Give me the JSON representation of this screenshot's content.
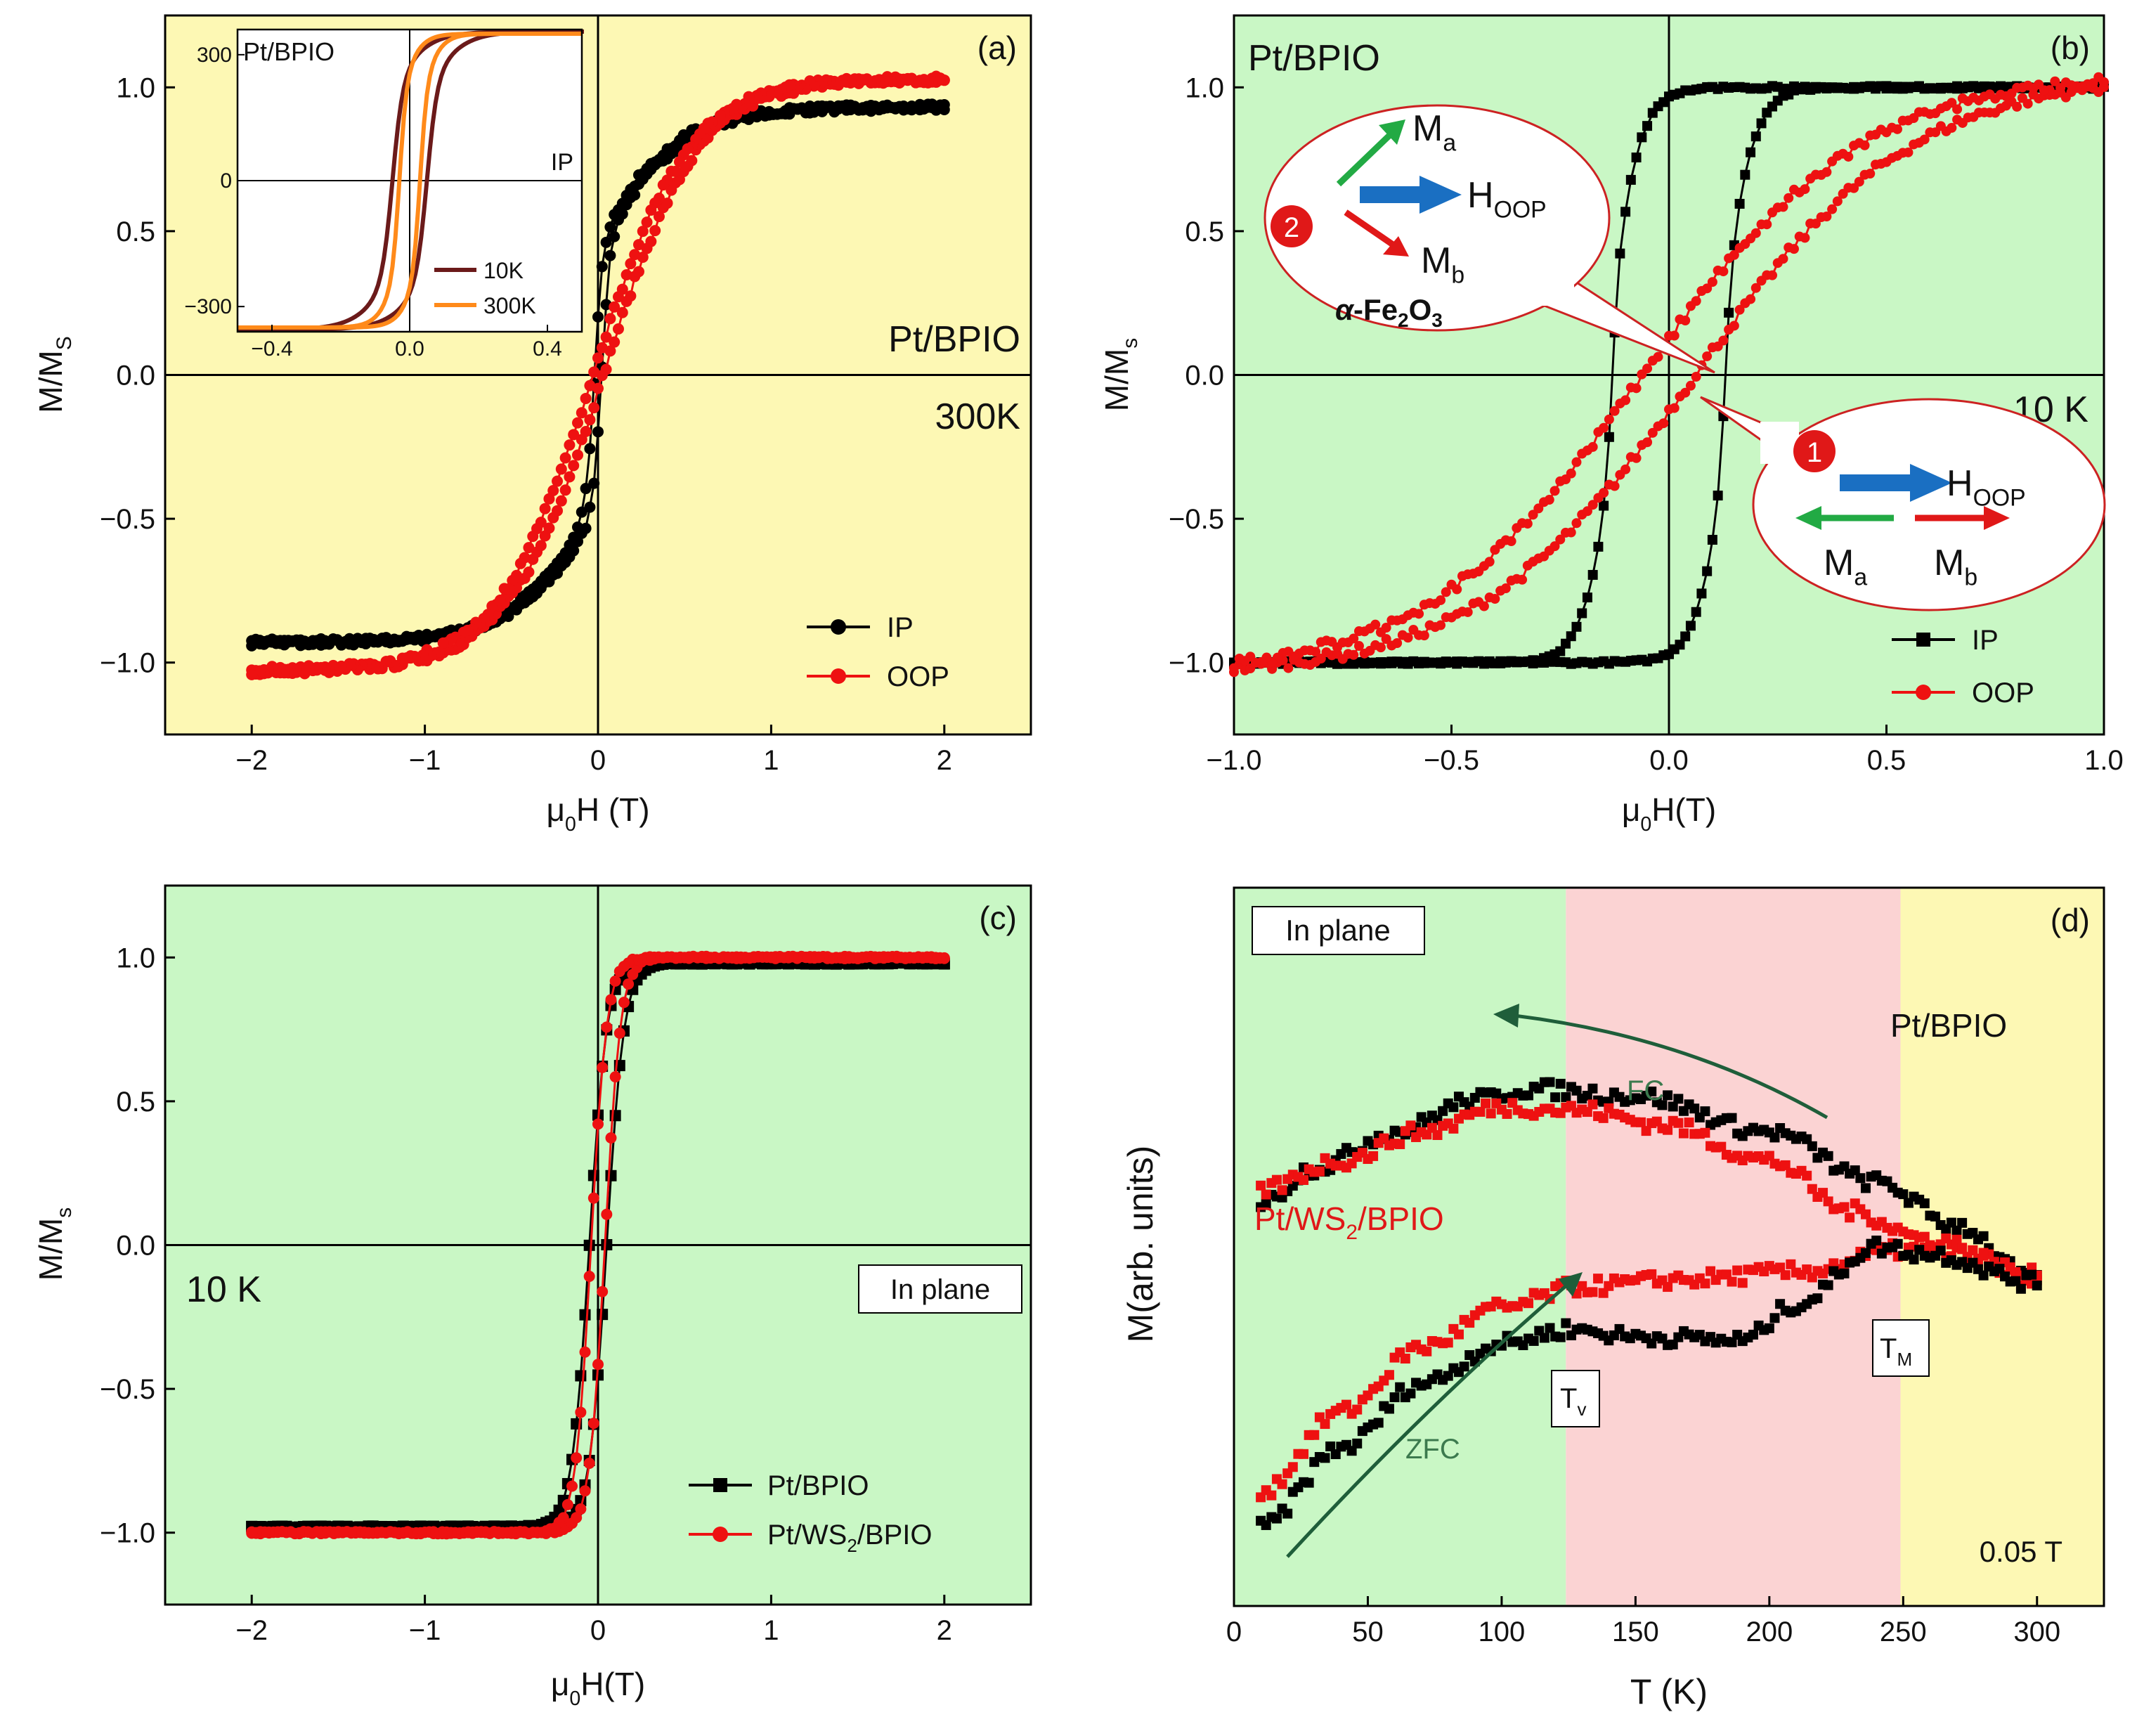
{
  "chart_data": [
    {
      "id": "a",
      "type": "line",
      "panel_label": "(a)",
      "xlabel": "μ0H (T)",
      "ylabel": "M/MS",
      "xlim": [
        -2.5,
        2.5
      ],
      "ylim": [
        -1.25,
        1.25
      ],
      "xticks": [
        -2,
        -1,
        0,
        1,
        2
      ],
      "yticks": [
        -1.0,
        -0.5,
        0.0,
        0.5,
        1.0
      ],
      "background": "#fdf8b4",
      "annotations": [
        "Pt/BPIO",
        "300K"
      ],
      "legend": [
        "IP",
        "OOP"
      ],
      "series": [
        {
          "name": "IP",
          "color": "#000000",
          "marker": "circle",
          "xmin": -2,
          "xmax": 2,
          "Hc": 0.02,
          "sat": 0.93,
          "w_hi": 0.5,
          "w_lo": 0.05,
          "mix": 0.5,
          "noise": 0.012
        },
        {
          "name": "OOP",
          "color": "#ee1111",
          "marker": "circle",
          "xmin": -2,
          "xmax": 2,
          "Hc": 0.03,
          "sat": 1.03,
          "w_hi": 0.55,
          "w_lo": 0.5,
          "mix": 1.0,
          "noise": 0.014
        }
      ],
      "inset": {
        "title": "Pt/BPIO",
        "label": "IP",
        "xlim": [
          -0.5,
          0.5
        ],
        "ylim": [
          -360,
          360
        ],
        "xticks": [
          -0.4,
          0.0,
          0.4
        ],
        "yticks": [
          -300,
          0,
          300
        ],
        "legend": [
          "10K",
          "300K"
        ],
        "series": [
          {
            "name": "10K",
            "color": "#6b1a1a",
            "Hc": 0.05,
            "sat": 355,
            "w_hi": 0.11,
            "w_lo": 0.03,
            "mix": 0.35
          },
          {
            "name": "300K",
            "color": "#ff8a1a",
            "Hc": 0.03,
            "sat": 350,
            "w_hi": 0.06,
            "w_lo": 0.02,
            "mix": 0.4
          }
        ]
      }
    },
    {
      "id": "b",
      "type": "line",
      "panel_label": "(b)",
      "xlabel": "μ0H(T)",
      "ylabel": "M/Ms",
      "xlim": [
        -1.0,
        1.0
      ],
      "ylim": [
        -1.25,
        1.25
      ],
      "xticks": [
        -1.0,
        -0.5,
        0.0,
        0.5,
        1.0
      ],
      "yticks": [
        -1.0,
        -0.5,
        0.0,
        0.5,
        1.0
      ],
      "background": "#c9f7c5",
      "annotations": [
        "Pt/BPIO",
        "10 K"
      ],
      "legend": [
        "IP",
        "OOP"
      ],
      "series": [
        {
          "name": "IP",
          "color": "#000000",
          "marker": "square",
          "xmin": -1,
          "xmax": 1,
          "Hc": 0.13,
          "sat": 1.0,
          "w_hi": 0.07,
          "w_lo": 0.015,
          "mix": 0.7,
          "noise": 0.005
        },
        {
          "name": "OOP",
          "color": "#ee1111",
          "marker": "circle",
          "xmin": -1,
          "xmax": 1,
          "Hc": 0.06,
          "sat": 1.05,
          "w_hi": 0.5,
          "w_lo": 0.5,
          "mix": 1.0,
          "noise": 0.018
        }
      ],
      "callouts": [
        {
          "number": "2",
          "top_label": "Ma",
          "field_label": "HOOP",
          "bottom_label": "Mb",
          "material": "α-Fe2O3"
        },
        {
          "number": "1",
          "field_label": "HOOP",
          "left_label": "Ma",
          "right_label": "Mb"
        }
      ]
    },
    {
      "id": "c",
      "type": "line",
      "panel_label": "(c)",
      "xlabel": "μ0H(T)",
      "ylabel": "M/Ms",
      "xlim": [
        -2.5,
        2.5
      ],
      "ylim": [
        -1.25,
        1.25
      ],
      "xticks": [
        -2,
        -1,
        0,
        1,
        2
      ],
      "yticks": [
        -1.0,
        -0.5,
        0.0,
        0.5,
        1.0
      ],
      "background": "#c9f7c5",
      "annotations": [
        "10 K",
        "In plane"
      ],
      "legend": [
        "Pt/BPIO",
        "Pt/WS2/BPIO"
      ],
      "series": [
        {
          "name": "Pt/BPIO",
          "color": "#000000",
          "marker": "square",
          "xmin": -2,
          "xmax": 2,
          "Hc": 0.05,
          "sat": 0.98,
          "w_hi": 0.1,
          "w_lo": 0.1,
          "mix": 1.0,
          "noise": 0.003
        },
        {
          "name": "Pt/WS2/BPIO",
          "color": "#ee1111",
          "marker": "circle",
          "xmin": -2,
          "xmax": 2,
          "Hc": 0.04,
          "sat": 1.0,
          "w_hi": 0.09,
          "w_lo": 0.09,
          "mix": 1.0,
          "noise": 0.004
        }
      ]
    },
    {
      "id": "d",
      "type": "scatter",
      "panel_label": "(d)",
      "xlabel": "T (K)",
      "ylabel": "M(arb. units)",
      "xlim": [
        0,
        325
      ],
      "ylim": [
        0,
        10
      ],
      "xticks": [
        0,
        50,
        100,
        150,
        200,
        250,
        300
      ],
      "regions": [
        {
          "from": 0,
          "to": 124,
          "color": "#c9f7c5"
        },
        {
          "from": 124,
          "to": 249,
          "color": "#fbd3d3"
        },
        {
          "from": 249,
          "to": 325,
          "color": "#fdf8b4"
        }
      ],
      "annotations": [
        "In plane",
        "Pt/BPIO",
        "Pt/WS2/BPIO",
        "FC",
        "ZFC",
        "Tv",
        "TM",
        "0.05 T"
      ],
      "series": [
        {
          "name": "Pt/BPIO FC",
          "color": "#000000",
          "points": [
            [
              10,
              5.6
            ],
            [
              30,
              6.1
            ],
            [
              60,
              6.6
            ],
            [
              90,
              7.05
            ],
            [
              110,
              7.2
            ],
            [
              150,
              7.1
            ],
            [
              200,
              6.6
            ],
            [
              240,
              5.9
            ],
            [
              270,
              5.3
            ],
            [
              300,
              4.5
            ]
          ]
        },
        {
          "name": "Pt/WS2/BPIO FC",
          "color": "#ee1111",
          "points": [
            [
              10,
              5.8
            ],
            [
              40,
              6.2
            ],
            [
              70,
              6.6
            ],
            [
              100,
              6.95
            ],
            [
              130,
              6.9
            ],
            [
              160,
              6.7
            ],
            [
              200,
              6.2
            ],
            [
              230,
              5.5
            ],
            [
              260,
              5.1
            ],
            [
              300,
              4.6
            ]
          ]
        },
        {
          "name": "Pt/WS2/BPIO ZFC",
          "color": "#ee1111",
          "points": [
            [
              10,
              1.6
            ],
            [
              40,
              2.7
            ],
            [
              70,
              3.6
            ],
            [
              100,
              4.15
            ],
            [
              130,
              4.45
            ],
            [
              170,
              4.55
            ],
            [
              210,
              4.65
            ],
            [
              250,
              4.95
            ],
            [
              270,
              4.9
            ],
            [
              300,
              4.5
            ]
          ]
        },
        {
          "name": "Pt/BPIO ZFC",
          "color": "#000000",
          "points": [
            [
              10,
              1.1
            ],
            [
              40,
              2.2
            ],
            [
              70,
              3.1
            ],
            [
              100,
              3.65
            ],
            [
              125,
              3.85
            ],
            [
              150,
              3.75
            ],
            [
              190,
              3.7
            ],
            [
              210,
              4.2
            ],
            [
              240,
              5.0
            ],
            [
              260,
              4.9
            ],
            [
              300,
              4.5
            ]
          ]
        }
      ]
    }
  ]
}
